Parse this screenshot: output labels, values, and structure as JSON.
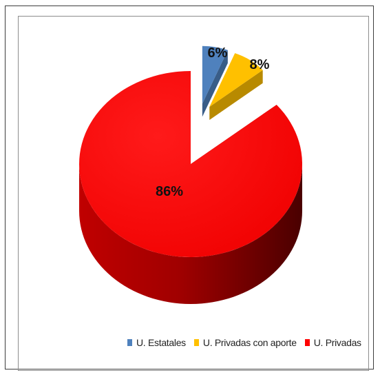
{
  "chart_data": {
    "type": "pie",
    "style": "3d-exploded",
    "title": "",
    "slices": [
      {
        "label": "U. Estatales",
        "value": 6,
        "display": "6%",
        "color": "#4f81bd",
        "exploded": true
      },
      {
        "label": "U. Privadas con aporte",
        "value": 8,
        "display": "8%",
        "color": "#ffc000",
        "exploded": true
      },
      {
        "label": "U. Privadas",
        "value": 86,
        "display": "86%",
        "color": "#ff0000",
        "exploded": false
      }
    ],
    "legend_position": "bottom-right"
  }
}
